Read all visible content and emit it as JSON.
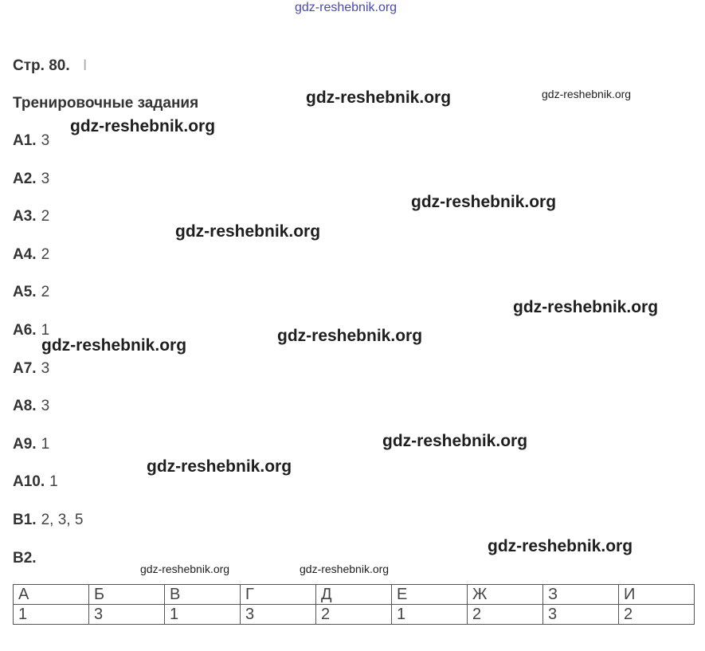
{
  "watermarks": [
    "gdz-reshebnik.org",
    "gdz-reshebnik.org",
    "gdz-reshebnik.org",
    "gdz-reshebnik.org",
    "gdz-reshebnik.org",
    "gdz-reshebnik.org",
    "gdz-reshebnik.org",
    "gdz-reshebnik.org",
    "gdz-reshebnik.org",
    "gdz-reshebnik.org",
    "gdz-reshebnik.org",
    "gdz-reshebnik.org",
    "gdz-reshebnik.org",
    "gdz-reshebnik.org"
  ],
  "header": {
    "page": "Стр. 80.",
    "marker": "I",
    "title": "Тренировочные задания"
  },
  "answers": [
    {
      "label": "А1.",
      "answer": "3"
    },
    {
      "label": "А2.",
      "answer": "3"
    },
    {
      "label": "А3.",
      "answer": "2"
    },
    {
      "label": "А4.",
      "answer": "2"
    },
    {
      "label": "А5.",
      "answer": "2"
    },
    {
      "label": "А6.",
      "answer": "1"
    },
    {
      "label": "А7.",
      "answer": "3"
    },
    {
      "label": "А8.",
      "answer": "3"
    },
    {
      "label": "А9.",
      "answer": "1"
    },
    {
      "label": "А10.",
      "answer": "1"
    },
    {
      "label": "В1.",
      "answer": "2, 3, 5"
    },
    {
      "label": "В2."
    }
  ],
  "table": {
    "rows": [
      [
        "А",
        "Б",
        "В",
        "Г",
        "Д",
        "Е",
        "Ж",
        "З",
        "И"
      ],
      [
        "1",
        "3",
        "1",
        "3",
        "2",
        "1",
        "2",
        "3",
        "2"
      ]
    ]
  }
}
